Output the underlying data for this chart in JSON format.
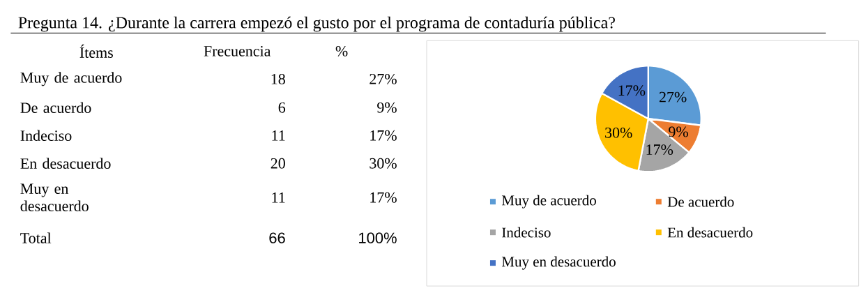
{
  "chart_data": {
    "type": "pie",
    "title": "Pregunta 14. ¿Durante la carrera empezó el gusto por el programa de contaduría pública?",
    "categories": [
      "Muy de acuerdo",
      "De acuerdo",
      "Indeciso",
      "En desacuerdo",
      "Muy en desacuerdo"
    ],
    "values": [
      27,
      9,
      17,
      30,
      17
    ],
    "colors": [
      "#5b9bd5",
      "#ed7d31",
      "#a5a5a5",
      "#ffc000",
      "#4472c4"
    ],
    "value_labels": [
      "27%",
      "9%",
      "17%",
      "30%",
      "17%"
    ],
    "legend": "bottom",
    "annotations": [
      "Ítems",
      "Frecuencia",
      "%",
      "18",
      "6",
      "11",
      "20",
      "11",
      "Total",
      "66",
      "100%"
    ]
  }
}
